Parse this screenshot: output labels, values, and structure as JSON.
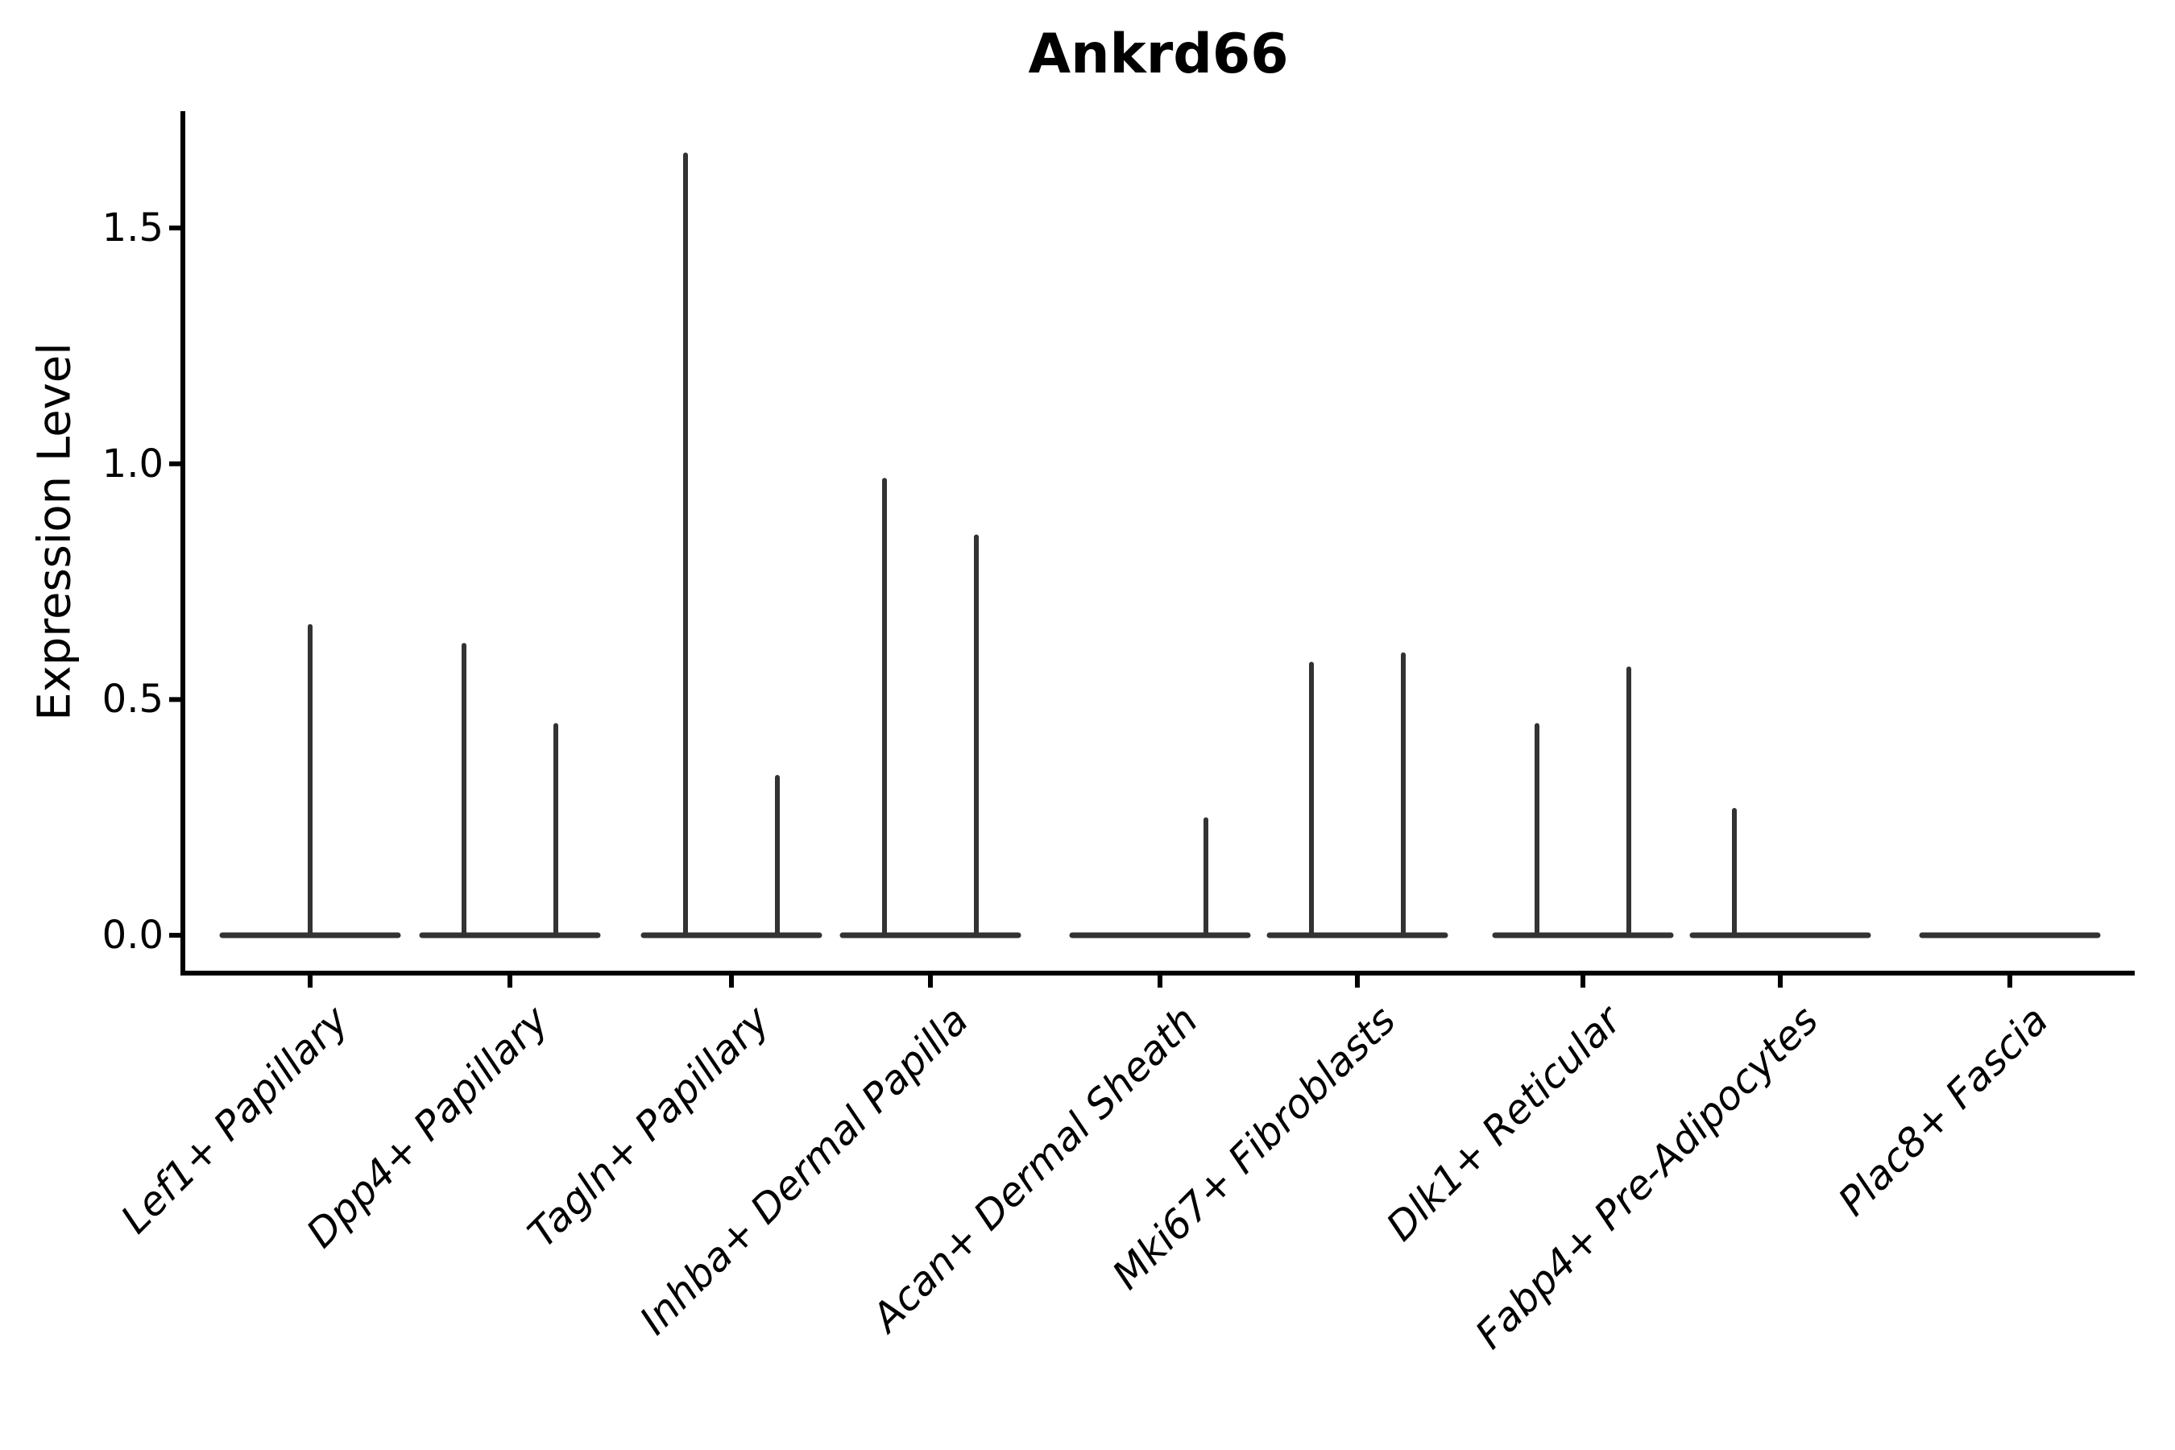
{
  "chart_data": {
    "type": "violin",
    "title": "Ankrd66",
    "xlabel": "",
    "ylabel": "Expression Level",
    "ylim": [
      -0.08,
      1.74
    ],
    "y_ticks": [
      0.0,
      0.5,
      1.0,
      1.5
    ],
    "y_tick_labels": [
      "0.0",
      "0.5",
      "1.0",
      "1.5"
    ],
    "grid": false,
    "legend": "none",
    "categories": [
      "Lef1+ Papillary",
      "Dpp4+ Papillary",
      "Tagln+ Papillary",
      "Inhba+ Dermal Papilla",
      "Acan+ Dermal Sheath",
      "Mki67+ Fibroblasts",
      "Dlk1+ Reticular",
      "Fabp4+ Pre-Adipocytes",
      "Plac8+ Fascia"
    ],
    "series": [
      {
        "category": "Lef1+ Papillary",
        "violins": [
          {
            "position": "center",
            "peak_expression": 0.66
          }
        ]
      },
      {
        "category": "Dpp4+ Papillary",
        "violins": [
          {
            "position": "left",
            "peak_expression": 0.62
          },
          {
            "position": "right",
            "peak_expression": 0.45
          }
        ]
      },
      {
        "category": "Tagln+ Papillary",
        "violins": [
          {
            "position": "left",
            "peak_expression": 1.66
          },
          {
            "position": "right",
            "peak_expression": 0.34
          }
        ]
      },
      {
        "category": "Inhba+ Dermal Papilla",
        "violins": [
          {
            "position": "left",
            "peak_expression": 0.97
          },
          {
            "position": "right",
            "peak_expression": 0.85
          }
        ]
      },
      {
        "category": "Acan+ Dermal Sheath",
        "violins": [
          {
            "position": "right",
            "peak_expression": 0.25
          }
        ]
      },
      {
        "category": "Mki67+ Fibroblasts",
        "violins": [
          {
            "position": "left",
            "peak_expression": 0.58
          },
          {
            "position": "right",
            "peak_expression": 0.6
          }
        ]
      },
      {
        "category": "Dlk1+ Reticular",
        "violins": [
          {
            "position": "left",
            "peak_expression": 0.45
          },
          {
            "position": "right",
            "peak_expression": 0.57
          }
        ]
      },
      {
        "category": "Fabp4+ Pre-Adipocytes",
        "violins": [
          {
            "position": "left",
            "peak_expression": 0.27
          }
        ]
      },
      {
        "category": "Plac8+ Fascia",
        "violins": []
      }
    ],
    "colors": {
      "background": "#ffffff",
      "axis": "#000000",
      "violin_line": "#333333",
      "text": "#000000"
    }
  }
}
